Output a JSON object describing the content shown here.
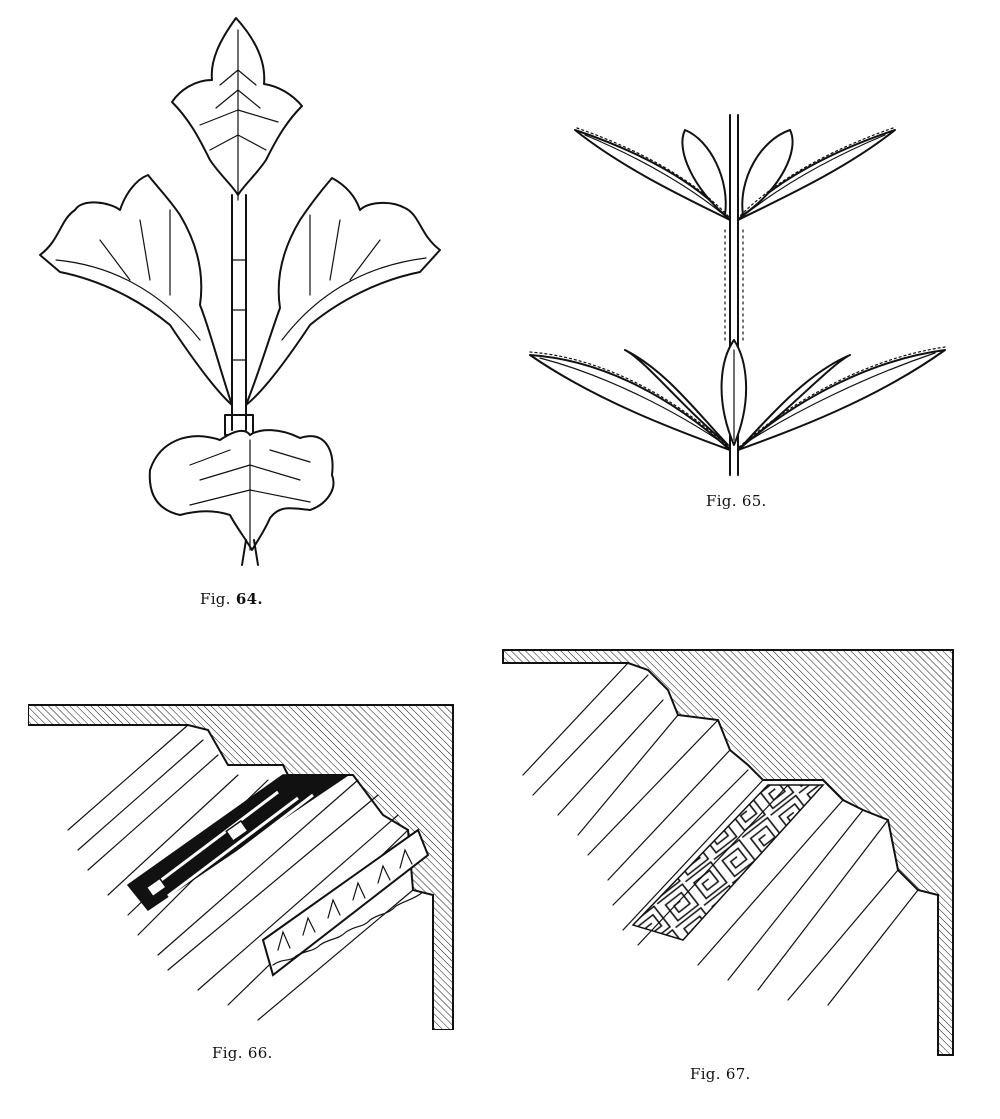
{
  "figures": [
    {
      "id": "64",
      "caption_prefix": "Fig.",
      "caption_number": "64."
    },
    {
      "id": "65",
      "caption_prefix": "Fig.",
      "caption_number": "65."
    },
    {
      "id": "66",
      "caption_prefix": "Fig.",
      "caption_number": "66."
    },
    {
      "id": "67",
      "caption_prefix": "Fig.",
      "caption_number": "67."
    }
  ]
}
